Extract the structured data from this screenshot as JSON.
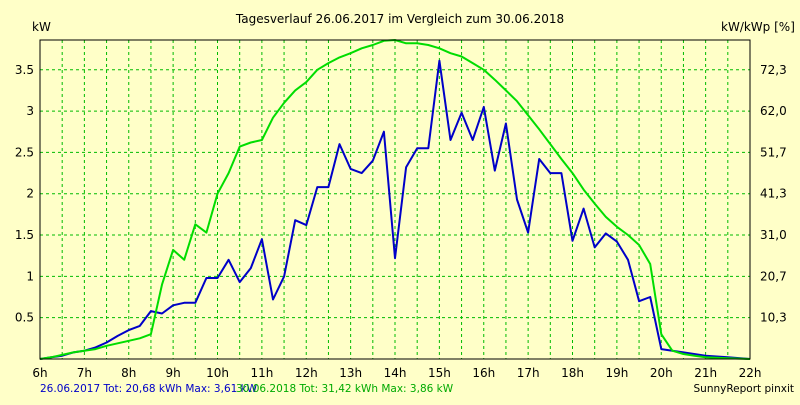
{
  "chart_data": {
    "type": "line",
    "title": "Tagesverlauf 26.06.2017 im Vergleich zum 30.06.2018",
    "ylabel": "kW",
    "y2label": "kW/kWp [%]",
    "x_ticks": [
      "6h",
      "7h",
      "8h",
      "9h",
      "10h",
      "11h",
      "12h",
      "13h",
      "14h",
      "15h",
      "16h",
      "17h",
      "18h",
      "19h",
      "20h",
      "21h",
      "22h"
    ],
    "y_ticks": [
      "0.5",
      "1",
      "1.5",
      "2",
      "2.5",
      "3",
      "3.5"
    ],
    "y2_ticks": [
      "10,3",
      "20,7",
      "31,0",
      "41,3",
      "51,7",
      "62,0",
      "72,3"
    ],
    "xlim": [
      6,
      22
    ],
    "ylim": [
      0,
      3.86
    ],
    "grid": true,
    "series": [
      {
        "color": "#0000c8",
        "x": [
          6.0,
          6.25,
          6.5,
          6.75,
          7.0,
          7.25,
          7.5,
          7.75,
          8.0,
          8.25,
          8.5,
          8.75,
          9.0,
          9.25,
          9.5,
          9.75,
          10.0,
          10.25,
          10.5,
          10.75,
          11.0,
          11.25,
          11.5,
          11.75,
          12.0,
          12.25,
          12.5,
          12.75,
          13.0,
          13.25,
          13.5,
          13.75,
          14.0,
          14.25,
          14.5,
          14.75,
          15.0,
          15.25,
          15.5,
          15.75,
          16.0,
          16.25,
          16.5,
          16.75,
          17.0,
          17.25,
          17.5,
          17.75,
          18.0,
          18.25,
          18.5,
          18.75,
          19.0,
          19.25,
          19.5,
          19.75,
          20.0,
          20.5,
          21.0,
          21.5,
          22.0
        ],
        "values": [
          0.0,
          0.02,
          0.04,
          0.08,
          0.1,
          0.14,
          0.2,
          0.28,
          0.35,
          0.4,
          0.58,
          0.55,
          0.65,
          0.68,
          0.68,
          0.98,
          0.98,
          1.2,
          0.93,
          1.1,
          1.45,
          0.72,
          1.0,
          1.68,
          1.62,
          2.08,
          2.08,
          2.6,
          2.3,
          2.25,
          2.4,
          2.75,
          1.22,
          2.32,
          2.55,
          2.55,
          3.61,
          2.65,
          2.98,
          2.65,
          3.05,
          2.28,
          2.85,
          1.93,
          1.53,
          2.42,
          2.25,
          2.25,
          1.43,
          1.82,
          1.35,
          1.52,
          1.42,
          1.2,
          0.7,
          0.75,
          0.12,
          0.08,
          0.04,
          0.02,
          0.0
        ],
        "legend": "26.06.2017 Tot: 20,68 kWh Max: 3,61 kW"
      },
      {
        "color": "#00dd00",
        "x": [
          6.0,
          6.25,
          6.5,
          6.75,
          7.0,
          7.25,
          7.5,
          7.75,
          8.0,
          8.25,
          8.5,
          8.75,
          9.0,
          9.25,
          9.5,
          9.75,
          10.0,
          10.25,
          10.5,
          10.75,
          11.0,
          11.25,
          11.5,
          11.75,
          12.0,
          12.25,
          12.5,
          12.75,
          13.0,
          13.25,
          13.5,
          13.75,
          14.0,
          14.25,
          14.5,
          14.75,
          15.0,
          15.25,
          15.5,
          15.75,
          16.0,
          16.25,
          16.5,
          16.75,
          17.0,
          17.25,
          17.5,
          17.75,
          18.0,
          18.25,
          18.5,
          18.75,
          19.0,
          19.25,
          19.5,
          19.75,
          20.0,
          20.25,
          20.5,
          20.75,
          21.0,
          21.5,
          22.0
        ],
        "values": [
          0.0,
          0.02,
          0.05,
          0.08,
          0.1,
          0.12,
          0.16,
          0.19,
          0.22,
          0.25,
          0.3,
          0.9,
          1.32,
          1.2,
          1.63,
          1.53,
          2.0,
          2.25,
          2.57,
          2.62,
          2.65,
          2.92,
          3.1,
          3.25,
          3.35,
          3.5,
          3.58,
          3.65,
          3.7,
          3.76,
          3.8,
          3.85,
          3.86,
          3.82,
          3.82,
          3.8,
          3.76,
          3.7,
          3.66,
          3.58,
          3.5,
          3.38,
          3.25,
          3.12,
          2.95,
          2.78,
          2.6,
          2.42,
          2.25,
          2.05,
          1.88,
          1.72,
          1.6,
          1.5,
          1.38,
          1.15,
          0.3,
          0.1,
          0.06,
          0.04,
          0.02,
          0.01,
          0.0
        ],
        "legend": "30.06.2018 Tot: 31,42 kWh Max: 3,86 kW"
      }
    ],
    "credit": "SunnyReport pinxit"
  }
}
